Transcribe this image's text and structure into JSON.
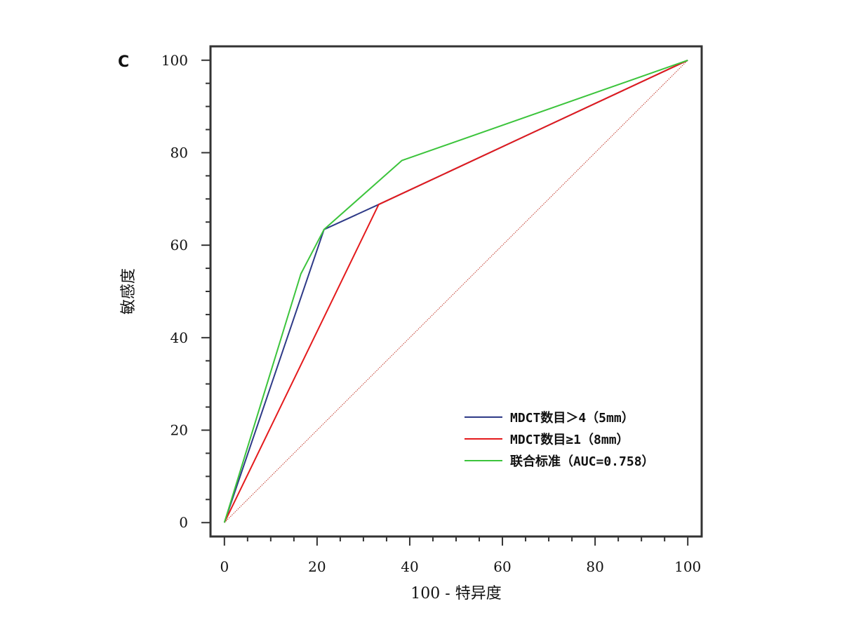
{
  "chart_data": {
    "type": "line",
    "panel_label": "C",
    "xlabel": "100 - 特异度",
    "ylabel": "敏感度",
    "xlim": [
      -3,
      103
    ],
    "ylim": [
      -3,
      103
    ],
    "xticks": [
      0,
      20,
      40,
      60,
      80,
      100
    ],
    "yticks": [
      0,
      20,
      40,
      60,
      80,
      100
    ],
    "minor_tick_step": 5,
    "grid": false,
    "legend_position": "lower-right",
    "reference_line": {
      "name": "reference",
      "x": [
        0,
        100
      ],
      "y": [
        0,
        100
      ],
      "color": "#c0392b",
      "style": "dotted"
    },
    "series": [
      {
        "name": "MDCT数目＞4（5mm）",
        "color": "#2e3a87",
        "x": [
          0,
          21.5,
          33.3,
          100
        ],
        "y": [
          0,
          63.4,
          68.8,
          100
        ]
      },
      {
        "name": "MDCT数目≥1（8mm）",
        "color": "#e41a1c",
        "x": [
          0,
          33.3,
          100
        ],
        "y": [
          0,
          68.8,
          100
        ]
      },
      {
        "name": "联合标准（AUC=0.758）",
        "color": "#3cc43c",
        "x": [
          0,
          16.5,
          21.5,
          38.3,
          100
        ],
        "y": [
          0,
          53.8,
          63.4,
          78.3,
          100
        ]
      }
    ]
  }
}
